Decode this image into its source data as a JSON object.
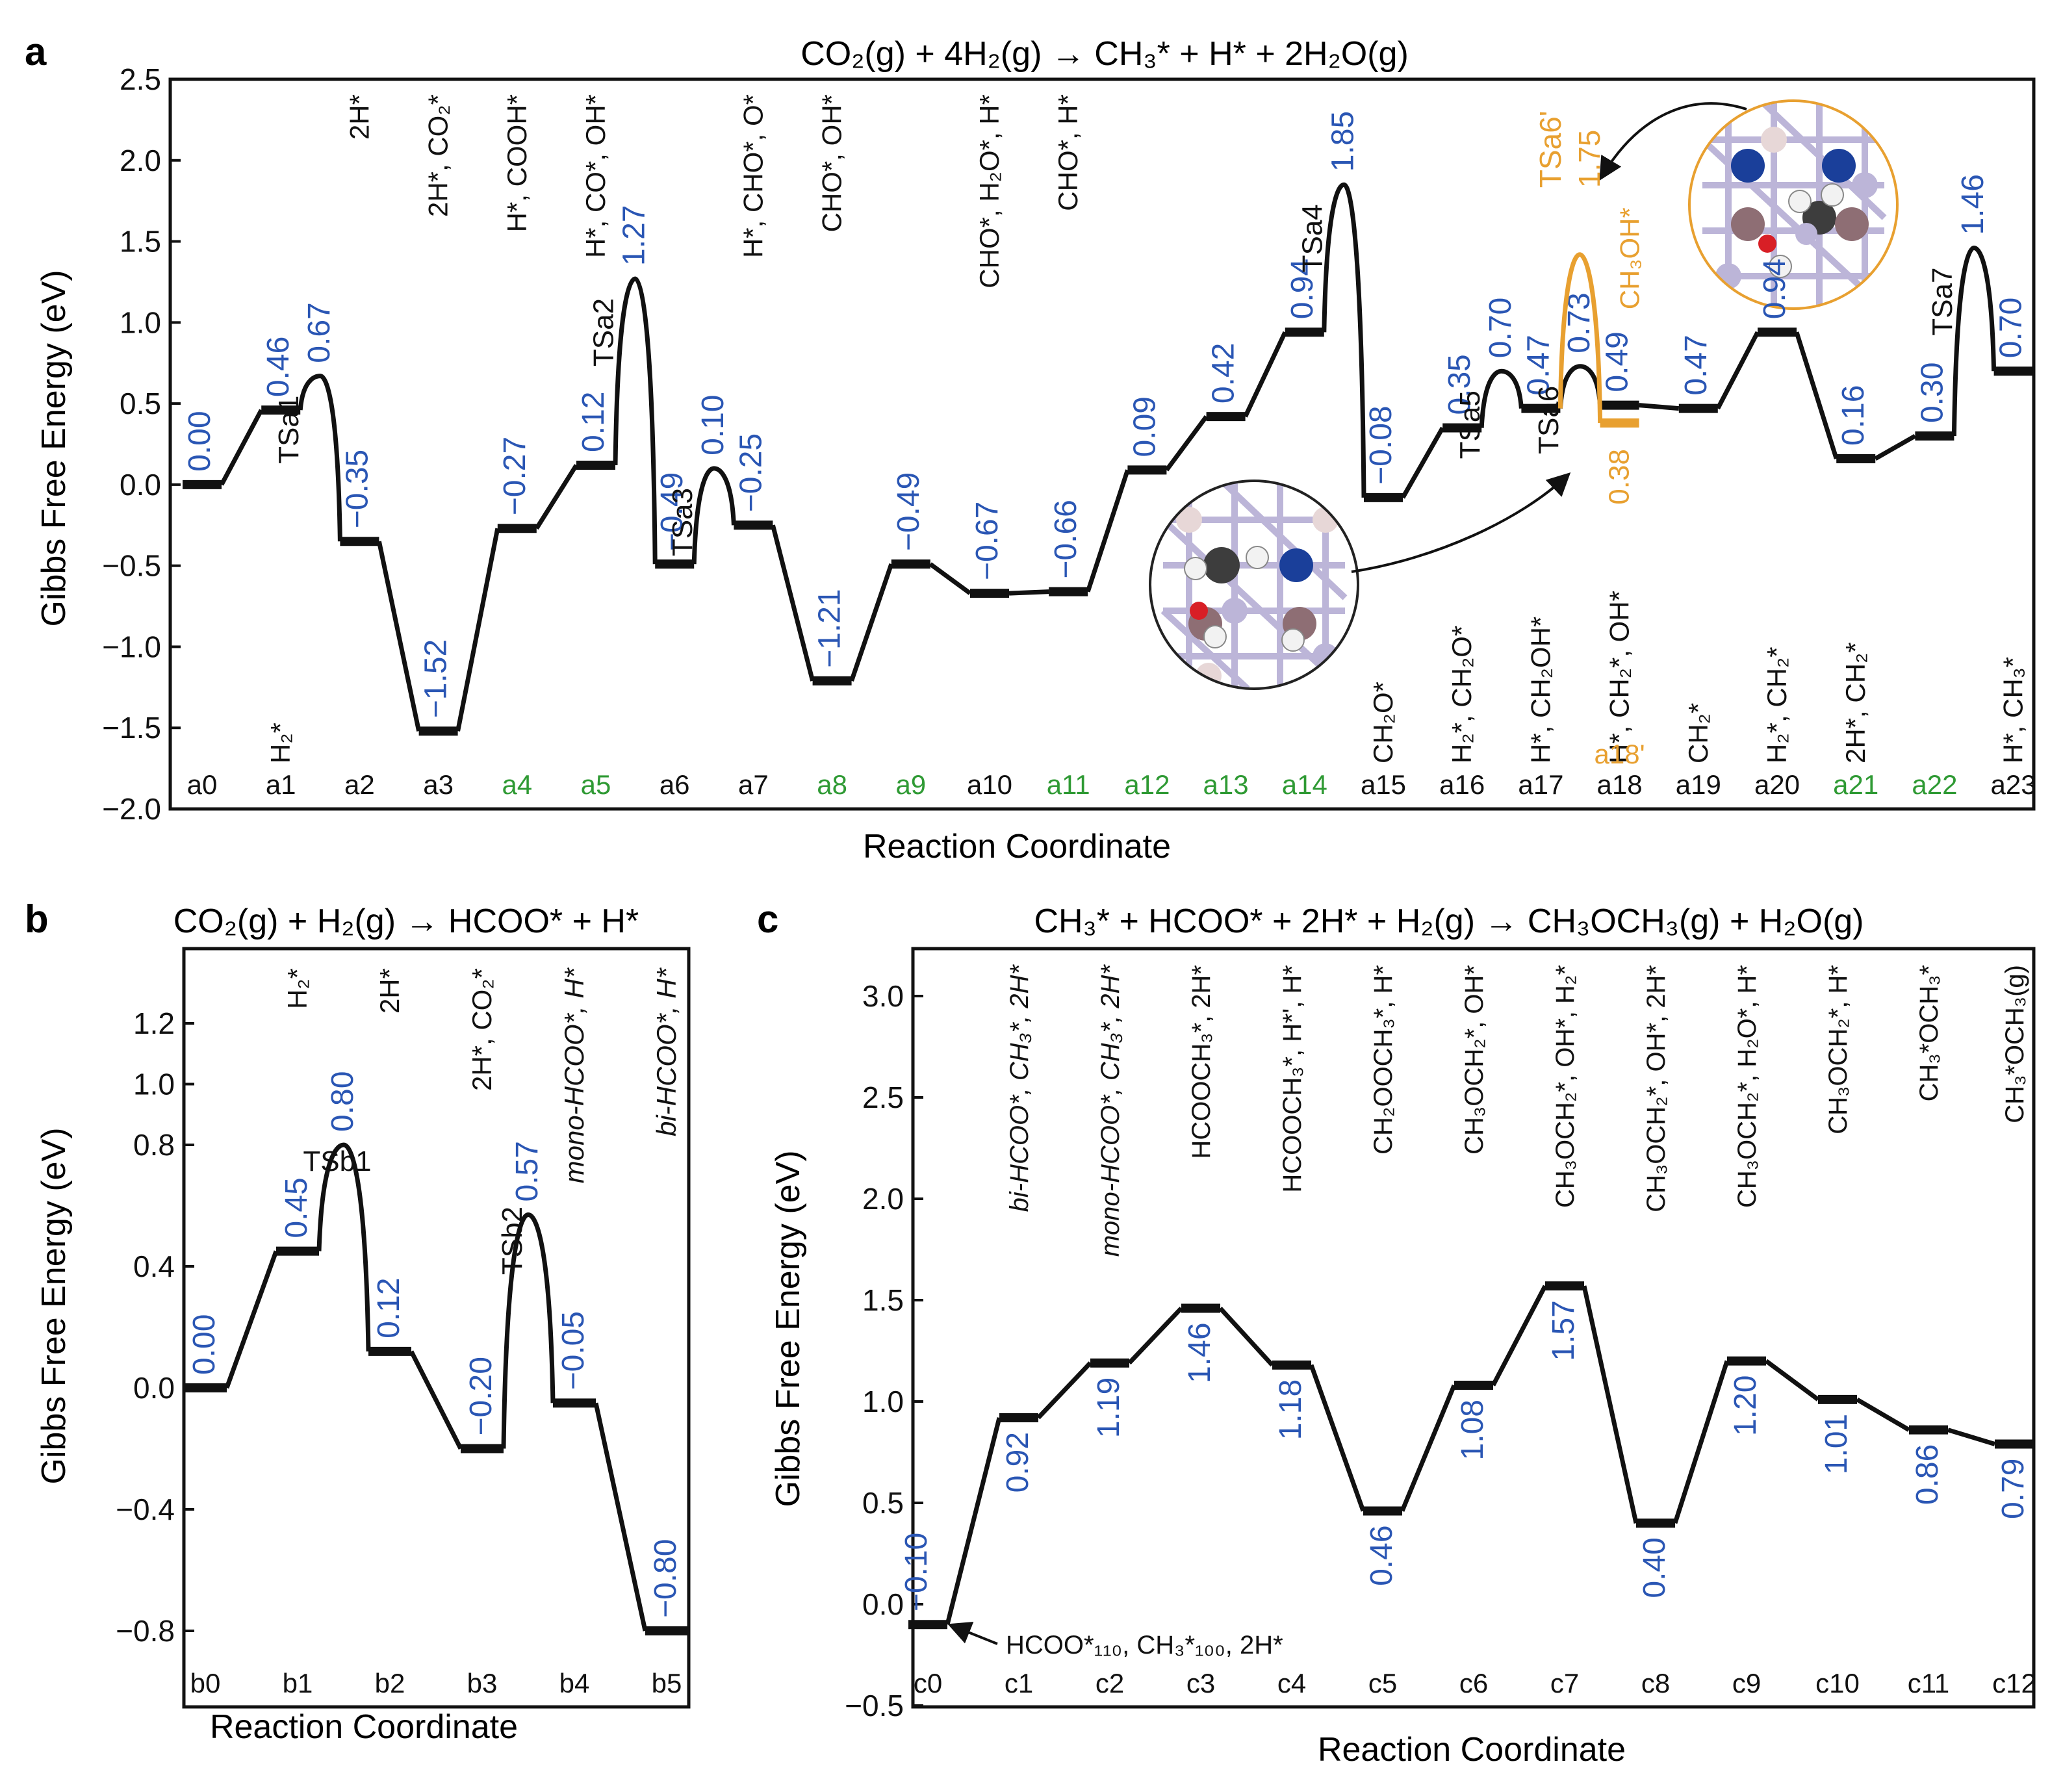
{
  "colors": {
    "path": "#111111",
    "value_blue": "#2a56b4",
    "highlight_orange": "#e8a030",
    "green_label": "#2f9a34",
    "atom_blue": "#1a3f9a",
    "atom_red": "#d81f26",
    "atom_white": "#f2f2f2",
    "atom_gray": "#3d3d3d",
    "atom_mauve": "#8e6e74",
    "atom_pink": "#e7d7d7",
    "lattice": "#bcb5d8"
  },
  "chart_data": [
    {
      "panel": "a",
      "type": "line",
      "title": "CO₂(g) + 4H₂(g) → CH₃* + H* + 2H₂O(g)",
      "xlabel": "Reaction Coordinate",
      "ylabel": "Gibbs Free Energy (eV)",
      "ylim": [
        -2.0,
        2.5
      ],
      "yticks": [
        "2.5",
        "2.0",
        "1.5",
        "1.0",
        "0.5",
        "0.0",
        "−0.5",
        "−1.0",
        "−1.5",
        "−2.0"
      ],
      "grid": false,
      "states": [
        {
          "name": "a0",
          "g": 0.0,
          "label": "0.00",
          "species": "",
          "green": false
        },
        {
          "name": "a1",
          "g": 0.46,
          "label": "0.46",
          "species": "H₂*",
          "green": false
        },
        {
          "name": "a2",
          "g": -0.35,
          "label": "−0.35",
          "species": "2H*",
          "green": false
        },
        {
          "name": "a3",
          "g": -1.52,
          "label": "−1.52",
          "species": "2H*, CO₂*",
          "green": false
        },
        {
          "name": "a4",
          "g": -0.27,
          "label": "−0.27",
          "species": "H*, COOH*",
          "green": true
        },
        {
          "name": "a5",
          "g": 0.12,
          "label": "0.12",
          "species": "H*, CO*, OH*",
          "green": true
        },
        {
          "name": "a6",
          "g": -0.49,
          "label": "−0.49",
          "species": "",
          "green": false
        },
        {
          "name": "a7",
          "g": -0.25,
          "label": "−0.25",
          "species": "H*, CHO*, O*",
          "green": false
        },
        {
          "name": "a8",
          "g": -1.21,
          "label": "−1.21",
          "species": "CHO*, OH*",
          "green": true
        },
        {
          "name": "a9",
          "g": -0.49,
          "label": "−0.49",
          "species": "",
          "green": true
        },
        {
          "name": "a10",
          "g": -0.67,
          "label": "−0.67",
          "species": "CHO*, H₂O*, H*",
          "green": false
        },
        {
          "name": "a11",
          "g": -0.66,
          "label": "−0.66",
          "species": "CHO*, H*",
          "green": true
        },
        {
          "name": "a12",
          "g": 0.09,
          "label": "0.09",
          "species": "",
          "green": true
        },
        {
          "name": "a13",
          "g": 0.42,
          "label": "0.42",
          "species": "",
          "green": true
        },
        {
          "name": "a14",
          "g": 0.94,
          "label": "0.94",
          "species": "",
          "green": true
        },
        {
          "name": "a15",
          "g": -0.08,
          "label": "−0.08",
          "species": "CH₂O*",
          "green": false
        },
        {
          "name": "a16",
          "g": 0.35,
          "label": "0.35",
          "species": "H₂*, CH₂O*",
          "green": false
        },
        {
          "name": "a17",
          "g": 0.47,
          "label": "0.47",
          "species": "H*, CH₂OH*",
          "green": false
        },
        {
          "name": "a18",
          "g": 0.49,
          "label": "0.49",
          "species": "H*, CH₂*, OH*",
          "green": false
        },
        {
          "name": "a19",
          "g": 0.47,
          "label": "0.47",
          "species": "CH₂*",
          "green": false
        },
        {
          "name": "a20",
          "g": 0.94,
          "label": "0.94",
          "species": "H₂*, CH₂*",
          "green": false
        },
        {
          "name": "a21",
          "g": 0.16,
          "label": "0.16",
          "species": "2H*, CH₂*",
          "green": true
        },
        {
          "name": "a22",
          "g": 0.3,
          "label": "0.30",
          "species": "",
          "green": true
        },
        {
          "name": "a23",
          "g": 0.7,
          "label": "0.70",
          "species": "H*, CH₃*",
          "green": false
        }
      ],
      "transition_states": [
        {
          "name": "TSa1",
          "after": "a1",
          "g": 0.67,
          "label": "0.67"
        },
        {
          "name": "TSa2",
          "after": "a5",
          "g": 1.27,
          "label": "1.27"
        },
        {
          "name": "TSa3",
          "after": "a6",
          "g": 0.1,
          "label": "0.10"
        },
        {
          "name": "TSa4",
          "after": "a14",
          "g": 1.85,
          "label": "1.85"
        },
        {
          "name": "TSa5",
          "after": "a16",
          "g": 0.7,
          "label": "0.70"
        },
        {
          "name": "TSa6",
          "after": "a17",
          "g": 0.73,
          "label": "0.73"
        },
        {
          "name": "TSa7",
          "after": "a22",
          "g": 1.46,
          "label": "1.46"
        }
      ],
      "alternative_path": {
        "ts_name": "TSa6'",
        "ts_g": 1.75,
        "ts_label": "1.75",
        "state_name": "a18'",
        "state_g": 0.38,
        "state_label": "0.38",
        "species": "CH₃OH*"
      }
    },
    {
      "panel": "b",
      "type": "line",
      "title": "CO₂(g) + H₂(g) → HCOO* + H*",
      "xlabel": "Reaction Coordinate",
      "ylabel": "Gibbs Free Energy (eV)",
      "ylim": [
        -0.9,
        1.3
      ],
      "yticks": [
        "1.2",
        "1.0",
        "0.8",
        "0.4",
        "0.0",
        "−0.4",
        "−0.8"
      ],
      "grid": false,
      "states": [
        {
          "name": "b0",
          "g": 0.0,
          "label": "0.00",
          "species": ""
        },
        {
          "name": "b1",
          "g": 0.45,
          "label": "0.45",
          "species": "H₂*"
        },
        {
          "name": "b2",
          "g": 0.12,
          "label": "0.12",
          "species": "2H*"
        },
        {
          "name": "b3",
          "g": -0.2,
          "label": "−0.20",
          "species": "2H*, CO₂*"
        },
        {
          "name": "b4",
          "g": -0.05,
          "label": "−0.05",
          "species": "mono-HCOO*, H*"
        },
        {
          "name": "b5",
          "g": -0.8,
          "label": "−0.80",
          "species": "bi-HCOO*, H*"
        }
      ],
      "transition_states": [
        {
          "name": "TSb1",
          "after": "b1",
          "g": 0.8,
          "label": "0.80"
        },
        {
          "name": "TSb2",
          "after": "b3",
          "g": 0.57,
          "label": "0.57"
        }
      ]
    },
    {
      "panel": "c",
      "type": "line",
      "title": "CH₃* + HCOO* + 2H* + H₂(g) → CH₃OCH₃(g) + H₂O(g)",
      "xlabel": "Reaction Coordinate",
      "ylabel": "Gibbs Free Energy (eV)",
      "ylim": [
        -0.5,
        3.2
      ],
      "yticks": [
        "3.0",
        "2.5",
        "2.0",
        "1.5",
        "1.0",
        "0.5",
        "0.0",
        "−0.5"
      ],
      "grid": false,
      "start_annotation": "HCOO*₁₁₀, CH₃*₁₀₀,  2H*",
      "states": [
        {
          "name": "c0",
          "g": -0.1,
          "label": "−0.10",
          "species": ""
        },
        {
          "name": "c1",
          "g": 0.92,
          "label": "0.92",
          "species": "bi-HCOO*, CH₃*, 2H*"
        },
        {
          "name": "c2",
          "g": 1.19,
          "label": "1.19",
          "species": "mono-HCOO*, CH₃*, 2H*"
        },
        {
          "name": "c3",
          "g": 1.46,
          "label": "1.46",
          "species": "HCOOCH₃*, 2H*"
        },
        {
          "name": "c4",
          "g": 1.18,
          "label": "1.18",
          "species": "HCOOCH₃*, H*', H*"
        },
        {
          "name": "c5",
          "g": 0.46,
          "label": "0.46",
          "species": "CH₂OOCH₃*,  H*"
        },
        {
          "name": "c6",
          "g": 1.08,
          "label": "1.08",
          "species": "CH₃OCH₂*, OH*"
        },
        {
          "name": "c7",
          "g": 1.57,
          "label": "1.57",
          "species": "CH₃OCH₂*, OH*, H₂*"
        },
        {
          "name": "c8",
          "g": 0.4,
          "label": "0.40",
          "species": "CH₃OCH₂*, OH*, 2H*"
        },
        {
          "name": "c9",
          "g": 1.2,
          "label": "1.20",
          "species": "CH₃OCH₂*, H₂O*, H*"
        },
        {
          "name": "c10",
          "g": 1.01,
          "label": "1.01",
          "species": "CH₃OCH₂*, H*"
        },
        {
          "name": "c11",
          "g": 0.86,
          "label": "0.86",
          "species": "CH₃*OCH₃*"
        },
        {
          "name": "c12",
          "g": 0.79,
          "label": "0.79",
          "species": "CH₃*OCH₃(g)"
        }
      ]
    }
  ],
  "panel_letters": [
    "a",
    "b",
    "c"
  ]
}
